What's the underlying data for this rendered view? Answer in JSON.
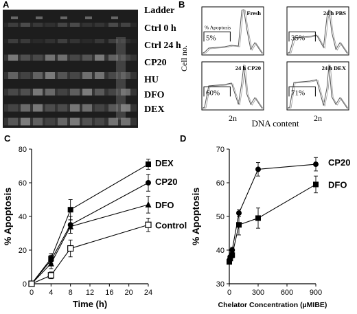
{
  "panels": {
    "A": {
      "letter": "A",
      "lane_labels": [
        "Ladder",
        "Ctrl 0 h",
        "Ctrl 24 h",
        "CP20",
        "HU",
        "DFO",
        "DEX"
      ]
    },
    "B": {
      "letter": "B",
      "ylabel": "Cell no.",
      "xlabel": "DNA content",
      "tick_label": "2n",
      "histograms": [
        {
          "title": "Fresh",
          "percent": "5%",
          "region_label": "% Apoptosis"
        },
        {
          "title": "24 h PBS",
          "percent": "35%"
        },
        {
          "title": "24 h CP20",
          "percent": "60%"
        },
        {
          "title": "24 h DEX",
          "percent": "71%"
        }
      ]
    },
    "C": {
      "letter": "C"
    },
    "D": {
      "letter": "D"
    }
  },
  "chart_data": [
    {
      "type": "line",
      "panel": "C",
      "xlabel": "Time (h)",
      "ylabel": "% Apoptosis",
      "xlim": [
        0,
        24
      ],
      "ylim": [
        0,
        80
      ],
      "xticks": [
        "0",
        "4",
        "8",
        "12",
        "16",
        "20",
        "24"
      ],
      "yticks": [
        "0",
        "20",
        "40",
        "60",
        "80"
      ],
      "x": [
        0,
        4,
        8,
        24
      ],
      "series": [
        {
          "name": "DEX",
          "marker": "square-filled",
          "values": [
            0,
            15,
            44,
            71
          ],
          "errors": [
            0,
            3,
            6,
            3
          ]
        },
        {
          "name": "CP20",
          "marker": "circle-filled",
          "values": [
            0,
            14,
            35,
            60
          ],
          "errors": [
            0,
            3,
            5,
            5
          ]
        },
        {
          "name": "DFO",
          "marker": "triangle-filled",
          "values": [
            0,
            12,
            34,
            47
          ],
          "errors": [
            0,
            3,
            4,
            5
          ]
        },
        {
          "name": "Control",
          "marker": "square-open",
          "values": [
            0,
            5,
            21,
            35
          ],
          "errors": [
            0,
            2,
            5,
            4
          ]
        }
      ]
    },
    {
      "type": "line",
      "panel": "D",
      "xlabel": "Chelator Concentration (µMIBE)",
      "ylabel": "% Apoptosis",
      "xlim": [
        0,
        900
      ],
      "ylim": [
        30,
        70
      ],
      "xticks": [
        "0",
        "300",
        "600",
        "900"
      ],
      "yticks": [
        "30",
        "40",
        "50",
        "60",
        "70"
      ],
      "series": [
        {
          "name": "CP20",
          "marker": "circle-filled",
          "x": [
            0,
            10,
            30,
            100,
            300,
            900
          ],
          "values": [
            37,
            38,
            40,
            51,
            64,
            65.5
          ],
          "errors": [
            0.5,
            0.5,
            0.8,
            1,
            2,
            2
          ]
        },
        {
          "name": "DFO",
          "marker": "square-filled",
          "x": [
            0,
            10,
            30,
            100,
            300,
            900
          ],
          "values": [
            36.5,
            37.5,
            38.5,
            47.5,
            49.5,
            59.5
          ],
          "errors": [
            0.5,
            0.5,
            0.8,
            3,
            3,
            2.5
          ]
        }
      ]
    }
  ]
}
